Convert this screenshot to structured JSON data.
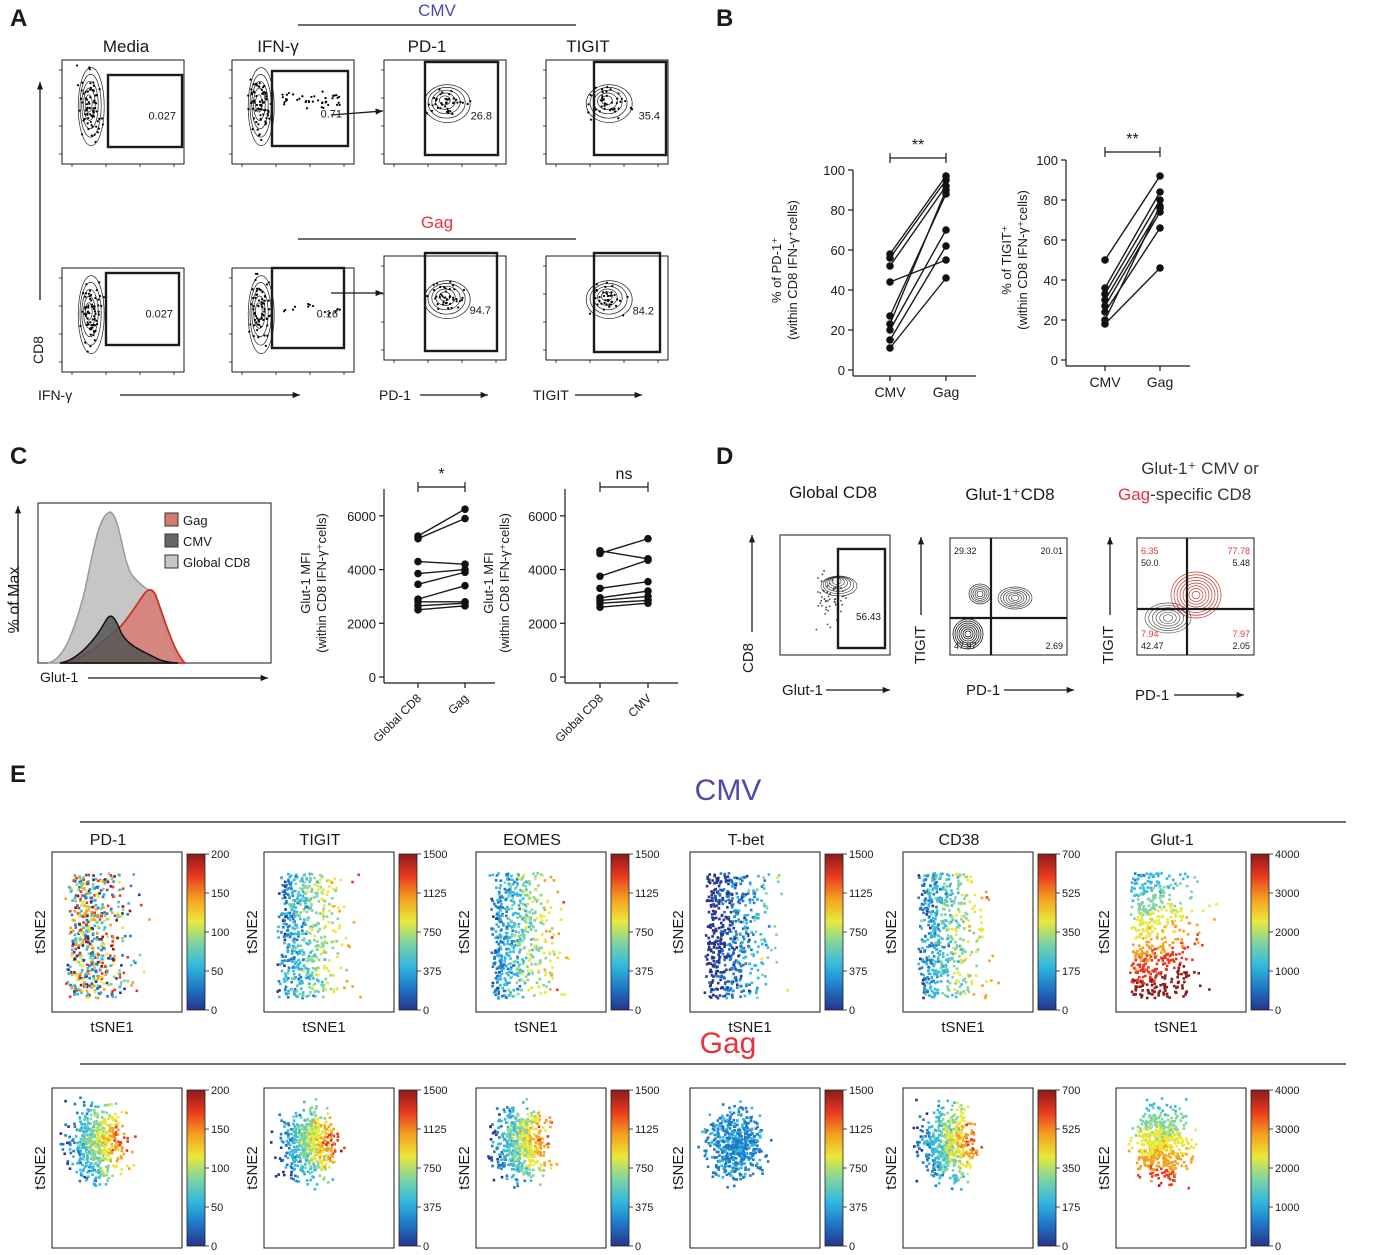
{
  "figure": {
    "panel_letters": [
      "A",
      "B",
      "C",
      "D",
      "E"
    ],
    "colors": {
      "cmv": "#4a4aa8",
      "gag": "#e8323c",
      "ink": "#1a1a1a",
      "dots": "#111111"
    }
  },
  "panel_a": {
    "group_cmv": "CMV",
    "group_gag": "Gag",
    "headers": [
      "Media",
      "IFN-γ",
      "PD-1",
      "TIGIT"
    ],
    "y_axis": "CD8",
    "x_axes": [
      "IFN-γ",
      "PD-1",
      "TIGIT"
    ],
    "gate_values_row1": [
      "0.027",
      "0.71",
      "26.8",
      "35.4"
    ],
    "gate_values_row2": [
      "0.027",
      "0.16",
      "94.7",
      "84.2"
    ]
  },
  "panel_b": {
    "sig": "**",
    "charts": [
      {
        "ylabel_lines": [
          "% of PD-1⁺",
          "(within CD8 IFN-γ⁺cells)"
        ],
        "ylim": [
          0,
          100
        ],
        "yticks": [
          "0",
          "20",
          "40",
          "60",
          "80",
          "100"
        ],
        "categories": [
          "CMV",
          "Gag"
        ],
        "pairs": [
          [
            58,
            97
          ],
          [
            56,
            95
          ],
          [
            52,
            92
          ],
          [
            44,
            55
          ],
          [
            27,
            88
          ],
          [
            23,
            90
          ],
          [
            20,
            70
          ],
          [
            15,
            62
          ],
          [
            11,
            46
          ]
        ]
      },
      {
        "ylabel_lines": [
          "% of TIGIT⁺",
          "(within CD8 IFN-γ⁺cells)"
        ],
        "ylim": [
          0,
          100
        ],
        "yticks": [
          "0",
          "20",
          "40",
          "60",
          "80",
          "100"
        ],
        "categories": [
          "CMV",
          "Gag"
        ],
        "pairs": [
          [
            50,
            92
          ],
          [
            36,
            84
          ],
          [
            33,
            80
          ],
          [
            30,
            76
          ],
          [
            27,
            74
          ],
          [
            24,
            66
          ],
          [
            20,
            77
          ],
          [
            18,
            46
          ]
        ]
      }
    ]
  },
  "panel_c": {
    "hist": {
      "ylabel": "% of Max",
      "xlabel": "Glut-1",
      "legend": [
        "Gag",
        "CMV",
        "Global CD8"
      ],
      "legend_colors": [
        "#d97a72",
        "#666666",
        "#c6c6c6"
      ]
    },
    "mfi": [
      {
        "sig": "*",
        "ylabel_lines": [
          "Glut-1 MFI",
          "(within CD8 IFN-γ⁺cells)"
        ],
        "ylim": [
          0,
          7000
        ],
        "yticks": [
          "0",
          "2000",
          "4000",
          "6000"
        ],
        "categories": [
          "Global CD8",
          "Gag"
        ],
        "pairs": [
          [
            5250,
            6250
          ],
          [
            5150,
            5900
          ],
          [
            4300,
            4200
          ],
          [
            3850,
            4000
          ],
          [
            3450,
            3900
          ],
          [
            2900,
            3400
          ],
          [
            2800,
            2800
          ],
          [
            2650,
            2750
          ],
          [
            2500,
            2650
          ]
        ]
      },
      {
        "sig": "ns",
        "ylabel_lines": [
          "Glut-1 MFI",
          "(within CD8 IFN-γ⁺cells)"
        ],
        "ylim": [
          0,
          7000
        ],
        "yticks": [
          "0",
          "2000",
          "4000",
          "6000"
        ],
        "categories": [
          "Global CD8",
          "CMV"
        ],
        "pairs": [
          [
            4700,
            4400
          ],
          [
            4600,
            5150
          ],
          [
            3750,
            4350
          ],
          [
            3300,
            3550
          ],
          [
            2950,
            3200
          ],
          [
            2850,
            3000
          ],
          [
            2750,
            2850
          ],
          [
            2600,
            2750
          ]
        ]
      }
    ]
  },
  "panel_d": {
    "titles": [
      "Global CD8",
      "Glut-1⁺CD8"
    ],
    "title3_dark": "Glut-1⁺ CMV or",
    "title3_red": "Gag",
    "title3_tail": "-specific CD8",
    "gate_value": "56.43",
    "y_labels": [
      "CD8",
      "TIGIT",
      "TIGIT"
    ],
    "x_labels": [
      "Glut-1",
      "PD-1",
      "PD-1"
    ],
    "quad_plot2": [
      "29.32",
      "20.01",
      "47.97",
      "2.69"
    ],
    "quad_plot3_red": [
      "6.35",
      "77.78",
      "7.94",
      "7.97"
    ],
    "quad_plot3_black": [
      "50.0",
      "5.48",
      "42.47",
      "2.05"
    ]
  },
  "panel_e": {
    "group_cmv": "CMV",
    "group_gag": "Gag",
    "markers": [
      "PD-1",
      "TIGIT",
      "EOMES",
      "T-bet",
      "CD38",
      "Glut-1"
    ],
    "xlabel": "tSNE1",
    "ylabel": "tSNE2",
    "scales": [
      [
        "200",
        "150",
        "100",
        "50",
        "0"
      ],
      [
        "1500",
        "1125",
        "750",
        "375",
        "0"
      ],
      [
        "1500",
        "1125",
        "750",
        "375",
        "0"
      ],
      [
        "1500",
        "1125",
        "750",
        "375",
        "0"
      ],
      [
        "700",
        "525",
        "350",
        "175",
        "0"
      ],
      [
        "4000",
        "3000",
        "2000",
        "1000",
        "0"
      ]
    ],
    "scale_colors": [
      "#27348b",
      "#1f78c8",
      "#33b8e0",
      "#7fd4a0",
      "#e8e83a",
      "#f5a020",
      "#e83a20",
      "#8b1a1a"
    ]
  }
}
